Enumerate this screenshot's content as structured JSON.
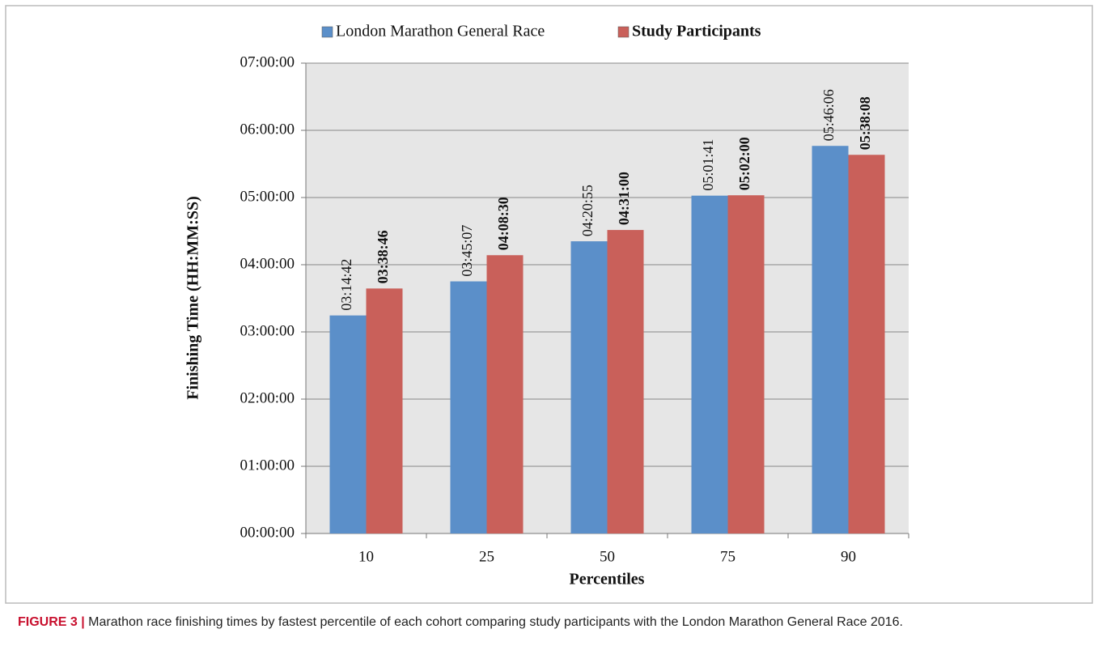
{
  "chart_data": {
    "type": "bar",
    "legend": "top",
    "grid": true,
    "x_label": "Percentiles",
    "y_label": "Finishing Time (HH:MM:SS)",
    "categories": [
      "10",
      "25",
      "50",
      "75",
      "90"
    ],
    "series": [
      {
        "name": "London Marathon General Race",
        "color": "#5b8fc9",
        "values": [
          11682,
          13507,
          15655,
          18101,
          20766
        ],
        "value_labels": [
          "03:14:42",
          "03:45:07",
          "04:20:55",
          "05:01:41",
          "05:46:06"
        ]
      },
      {
        "name": "Study Participants",
        "color": "#c9605a",
        "values": [
          13126,
          14910,
          16260,
          18120,
          20288
        ],
        "value_labels": [
          "03:38:46",
          "04:08:30",
          "04:31:00",
          "05:02:00",
          "05:38:08"
        ]
      }
    ],
    "ylim": [
      0,
      25200
    ],
    "yticks": [
      {
        "value": 0,
        "label": "00:00:00"
      },
      {
        "value": 3600,
        "label": "01:00:00"
      },
      {
        "value": 7200,
        "label": "02:00:00"
      },
      {
        "value": 10800,
        "label": "03:00:00"
      },
      {
        "value": 14400,
        "label": "04:00:00"
      },
      {
        "value": 18000,
        "label": "05:00:00"
      },
      {
        "value": 21600,
        "label": "06:00:00"
      },
      {
        "value": 25200,
        "label": "07:00:00"
      }
    ]
  },
  "caption": {
    "label": "FIGURE 3 |",
    "text": "Marathon race finishing times by fastest percentile of each cohort comparing study participants with the London Marathon General Race 2016."
  }
}
